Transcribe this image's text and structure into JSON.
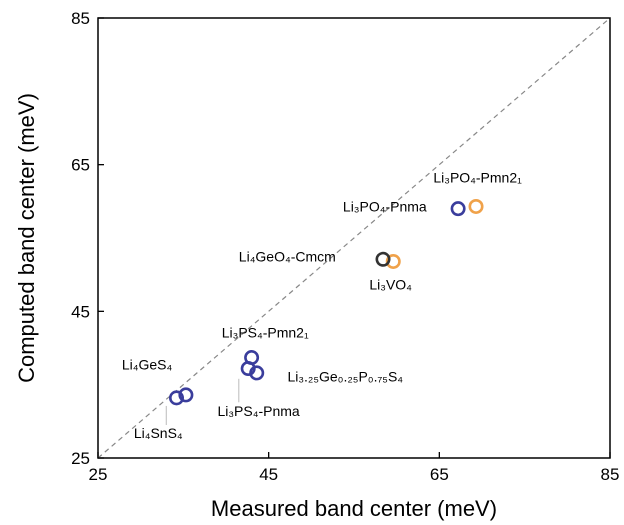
{
  "chart_data": {
    "type": "scatter",
    "xlabel": "Measured band center (meV)",
    "ylabel": "Computed band center (meV)",
    "xlim": [
      25,
      85
    ],
    "ylim": [
      25,
      85
    ],
    "xticks": [
      25,
      45,
      65,
      85
    ],
    "yticks": [
      25,
      45,
      65,
      85
    ],
    "grid": false,
    "reference_line": {
      "style": "dashed",
      "color": "#888888",
      "from": [
        25,
        25
      ],
      "to": [
        85,
        85
      ]
    },
    "series": [
      {
        "color": "#3a3d9c",
        "points": [
          {
            "x": 35.3,
            "y": 33.6
          },
          {
            "x": 34.2,
            "y": 33.2
          },
          {
            "x": 43.0,
            "y": 38.7
          },
          {
            "x": 42.6,
            "y": 37.2
          },
          {
            "x": 43.6,
            "y": 36.6
          },
          {
            "x": 67.2,
            "y": 59.0
          }
        ]
      },
      {
        "color": "#f0a24a",
        "points": [
          {
            "x": 69.3,
            "y": 59.3
          },
          {
            "x": 59.6,
            "y": 51.8
          }
        ]
      },
      {
        "color": "#333333",
        "points": [
          {
            "x": 58.4,
            "y": 52.1
          }
        ]
      }
    ],
    "annotations": [
      {
        "text": "Li₄GeS₄",
        "x": 27.8,
        "y": 37.1
      },
      {
        "text": "Li₄SnS₄",
        "x": 29.2,
        "y": 27.7
      },
      {
        "text": "Li₃PS₄-Pmn2₁",
        "x": 39.5,
        "y": 41.4
      },
      {
        "text": "Li₃.₂₅Ge₀.₂₅P₀.₇₅S₄",
        "x": 47.2,
        "y": 35.4
      },
      {
        "text": "Li₃PS₄-Pnma",
        "x": 39.0,
        "y": 30.7
      },
      {
        "text": "Li₄GeO₄-Cmcm",
        "x": 41.5,
        "y": 51.8
      },
      {
        "text": "Li₃VO₄",
        "x": 56.8,
        "y": 48.0
      },
      {
        "text": "Li₃PO₄-Pnma",
        "x": 53.7,
        "y": 58.6
      },
      {
        "text": "Li₃PO₄-Pmn2₁",
        "x": 64.3,
        "y": 62.6
      }
    ]
  }
}
